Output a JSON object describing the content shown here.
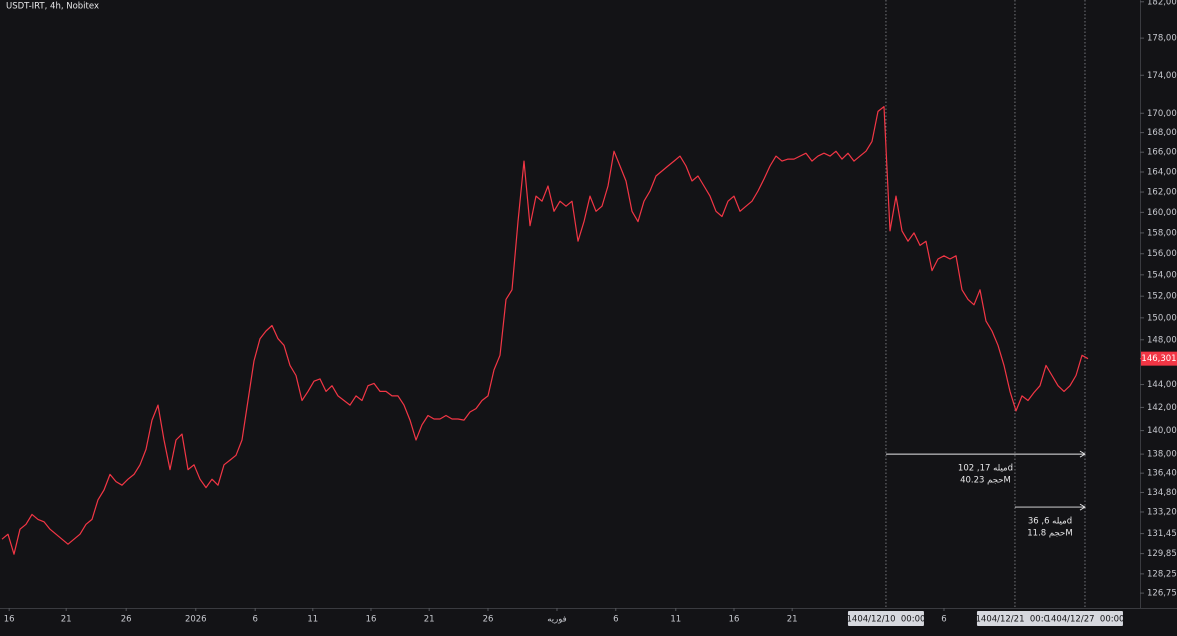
{
  "chart_data": {
    "type": "line",
    "title": "USDT-IRT, 4h, Nobitex",
    "log_scale": true,
    "grid": false,
    "series": [
      {
        "name": "USDT-IRT",
        "color": "#f23645",
        "values": [
          131000,
          131400,
          129800,
          131800,
          132200,
          133000,
          132600,
          132400,
          131800,
          131400,
          131000,
          130600,
          131000,
          131400,
          132200,
          132600,
          134200,
          135000,
          136300,
          135700,
          135400,
          135900,
          136300,
          137100,
          138400,
          140900,
          142200,
          139200,
          136700,
          139200,
          139700,
          136700,
          137100,
          135900,
          135200,
          135900,
          135400,
          137100,
          137500,
          137900,
          139200,
          142600,
          146100,
          148100,
          148800,
          149300,
          148100,
          147500,
          145700,
          144800,
          142600,
          143400,
          144300,
          144500,
          143400,
          143900,
          143000,
          142600,
          142200,
          143000,
          142600,
          143900,
          144100,
          143400,
          143400,
          143000,
          143000,
          142200,
          140900,
          139200,
          140500,
          141300,
          141000,
          141000,
          141300,
          141000,
          141000,
          140900,
          141600,
          141900,
          142600,
          143000,
          145300,
          146600,
          151700,
          152600,
          159100,
          165100,
          158700,
          161600,
          161100,
          162600,
          160100,
          161100,
          160600,
          161100,
          157200,
          159100,
          161600,
          160100,
          160600,
          162600,
          166100,
          164600,
          163100,
          160100,
          159100,
          161100,
          162100,
          163600,
          164100,
          164600,
          165100,
          165600,
          164600,
          163100,
          163600,
          162600,
          161600,
          160100,
          159600,
          161100,
          161600,
          160100,
          160600,
          161100,
          162100,
          163300,
          164600,
          165600,
          165100,
          165300,
          165300,
          165600,
          165900,
          165100,
          165600,
          165900,
          165600,
          166100,
          165300,
          165900,
          165100,
          165600,
          166100,
          167100,
          170200,
          170700,
          158200,
          161600,
          158200,
          157200,
          158000,
          156800,
          157200,
          154400,
          155500,
          155800,
          155500,
          155800,
          152600,
          151700,
          151200,
          152600,
          149700,
          148800,
          147500,
          145700,
          143400,
          141700,
          143000,
          142600,
          143300,
          143900,
          145700,
          144800,
          143900,
          143400,
          143900,
          144800,
          146600,
          146301
        ]
      }
    ],
    "last_label": "146,301",
    "xlim": [
      -0.33,
      189.67
    ],
    "ylim": [
      125600,
      182200
    ],
    "yticks": [
      {
        "value": 182000,
        "label": "182,000"
      },
      {
        "value": 178000,
        "label": "178,000"
      },
      {
        "value": 174000,
        "label": "174,000"
      },
      {
        "value": 170000,
        "label": "170,000"
      },
      {
        "value": 168000,
        "label": "168,000"
      },
      {
        "value": 166000,
        "label": "166,000"
      },
      {
        "value": 164000,
        "label": "164,000"
      },
      {
        "value": 162000,
        "label": "162,000"
      },
      {
        "value": 160000,
        "label": "160,000"
      },
      {
        "value": 158000,
        "label": "158,000"
      },
      {
        "value": 156000,
        "label": "156,000"
      },
      {
        "value": 154000,
        "label": "154,000"
      },
      {
        "value": 152000,
        "label": "152,000"
      },
      {
        "value": 150000,
        "label": "150,000"
      },
      {
        "value": 148000,
        "label": "148,000"
      },
      {
        "value": 144000,
        "label": "144,000"
      },
      {
        "value": 142000,
        "label": "142,000"
      },
      {
        "value": 140000,
        "label": "140,000"
      },
      {
        "value": 138000,
        "label": "138,000"
      },
      {
        "value": 136400,
        "label": "136,400"
      },
      {
        "value": 134800,
        "label": "134,800"
      },
      {
        "value": 133200,
        "label": "133,200"
      },
      {
        "value": 131450,
        "label": "131,450"
      },
      {
        "value": 129850,
        "label": "129,850"
      },
      {
        "value": 128250,
        "label": "128,250"
      },
      {
        "value": 126750,
        "label": "126,750"
      }
    ],
    "xticks": [
      {
        "value": 1.2,
        "label": "16"
      },
      {
        "value": 10.7,
        "label": "21"
      },
      {
        "value": 20.7,
        "label": "26"
      },
      {
        "value": 32.3,
        "label": "2026"
      },
      {
        "value": 42.2,
        "label": "6"
      },
      {
        "value": 51.8,
        "label": "11"
      },
      {
        "value": 61.5,
        "label": "16"
      },
      {
        "value": 71.2,
        "label": "21"
      },
      {
        "value": 81,
        "label": "26"
      },
      {
        "value": 92.5,
        "label": "فوریه"
      },
      {
        "value": 102.3,
        "label": "6"
      },
      {
        "value": 112.3,
        "label": "11"
      },
      {
        "value": 122,
        "label": "16"
      },
      {
        "value": 131.7,
        "label": "21"
      },
      {
        "value": 157,
        "label": "6"
      }
    ],
    "markers": [
      {
        "value": 147.33,
        "label": "1404/12/10  00:00"
      },
      {
        "value": 168.83,
        "label": "1404/12/21  00:00"
      },
      {
        "value": 180.5,
        "label": "1404/12/27  00:00"
      }
    ],
    "measurements": [
      {
        "from": 147.33,
        "to": 180.5,
        "price": 138000,
        "lines": [
          "102 ,میله 17d",
          "حجم 40.23M"
        ]
      },
      {
        "from": 168.83,
        "to": 180.5,
        "price": 133600,
        "lines": [
          "36 ,میله 6d",
          "حجم 11.8M"
        ]
      }
    ]
  }
}
